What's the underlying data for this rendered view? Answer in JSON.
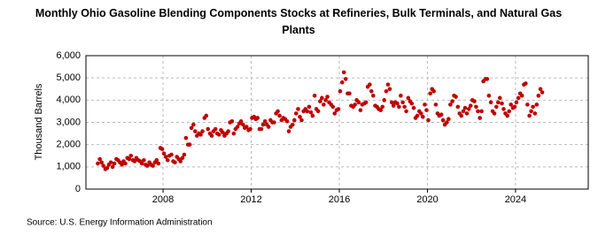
{
  "chart_data": {
    "type": "scatter",
    "title": "Monthly Ohio Gasoline Blending Components Stocks at Refineries, Bulk Terminals, and Natural Gas Plants",
    "y_label": "Thousand Barrels",
    "source": "Source: U.S. Energy Information Administration",
    "color": "#c00000",
    "grid": true,
    "xlim": [
      2004.5,
      2027.3
    ],
    "xticks": [
      2008,
      2012,
      2016,
      2020,
      2024
    ],
    "ylim": [
      0,
      6000
    ],
    "yticks": [
      0,
      {
        "value": 1000,
        "label": "1,000"
      },
      {
        "value": 2000,
        "label": "2,000"
      },
      {
        "value": 3000,
        "label": "3,000"
      },
      {
        "value": 4000,
        "label": "4,000"
      },
      {
        "value": 5000,
        "label": "5,000"
      },
      {
        "value": 6000,
        "label": "6,000"
      }
    ],
    "x": [
      2005.04,
      2005.13,
      2005.21,
      2005.29,
      2005.38,
      2005.46,
      2005.54,
      2005.63,
      2005.71,
      2005.79,
      2005.88,
      2005.96,
      2006.04,
      2006.13,
      2006.21,
      2006.29,
      2006.38,
      2006.46,
      2006.54,
      2006.63,
      2006.71,
      2006.79,
      2006.88,
      2006.96,
      2007.04,
      2007.13,
      2007.21,
      2007.29,
      2007.38,
      2007.46,
      2007.54,
      2007.63,
      2007.71,
      2007.79,
      2007.88,
      2007.96,
      2008.04,
      2008.13,
      2008.21,
      2008.29,
      2008.38,
      2008.46,
      2008.54,
      2008.63,
      2008.71,
      2008.79,
      2008.88,
      2008.96,
      2009.04,
      2009.13,
      2009.21,
      2009.29,
      2009.38,
      2009.46,
      2009.54,
      2009.63,
      2009.71,
      2009.79,
      2009.88,
      2009.96,
      2010.04,
      2010.13,
      2010.21,
      2010.29,
      2010.38,
      2010.46,
      2010.54,
      2010.63,
      2010.71,
      2010.79,
      2010.88,
      2010.96,
      2011.04,
      2011.13,
      2011.21,
      2011.29,
      2011.38,
      2011.46,
      2011.54,
      2011.63,
      2011.71,
      2011.79,
      2011.88,
      2011.96,
      2012.04,
      2012.13,
      2012.21,
      2012.29,
      2012.38,
      2012.46,
      2012.54,
      2012.63,
      2012.71,
      2012.79,
      2012.88,
      2012.96,
      2013.04,
      2013.13,
      2013.21,
      2013.29,
      2013.38,
      2013.46,
      2013.54,
      2013.63,
      2013.71,
      2013.79,
      2013.88,
      2013.96,
      2014.04,
      2014.13,
      2014.21,
      2014.29,
      2014.38,
      2014.46,
      2014.54,
      2014.63,
      2014.71,
      2014.79,
      2014.88,
      2014.96,
      2015.04,
      2015.13,
      2015.21,
      2015.29,
      2015.38,
      2015.46,
      2015.54,
      2015.63,
      2015.71,
      2015.79,
      2015.88,
      2015.96,
      2016.04,
      2016.13,
      2016.21,
      2016.29,
      2016.38,
      2016.46,
      2016.54,
      2016.63,
      2016.71,
      2016.79,
      2016.88,
      2016.96,
      2017.04,
      2017.13,
      2017.21,
      2017.29,
      2017.38,
      2017.46,
      2017.54,
      2017.63,
      2017.71,
      2017.79,
      2017.88,
      2017.96,
      2018.04,
      2018.13,
      2018.21,
      2018.29,
      2018.38,
      2018.46,
      2018.54,
      2018.63,
      2018.71,
      2018.79,
      2018.88,
      2018.96,
      2019.04,
      2019.13,
      2019.21,
      2019.29,
      2019.38,
      2019.46,
      2019.54,
      2019.63,
      2019.71,
      2019.79,
      2019.88,
      2019.96,
      2020.04,
      2020.13,
      2020.21,
      2020.29,
      2020.38,
      2020.46,
      2020.54,
      2020.63,
      2020.71,
      2020.79,
      2020.88,
      2020.96,
      2021.04,
      2021.13,
      2021.21,
      2021.29,
      2021.38,
      2021.46,
      2021.54,
      2021.63,
      2021.71,
      2021.79,
      2021.88,
      2021.96,
      2022.04,
      2022.13,
      2022.21,
      2022.29,
      2022.38,
      2022.46,
      2022.54,
      2022.63,
      2022.71,
      2022.79,
      2022.88,
      2022.96,
      2023.04,
      2023.13,
      2023.21,
      2023.29,
      2023.38,
      2023.46,
      2023.54,
      2023.63,
      2023.71,
      2023.79,
      2023.88,
      2023.96,
      2024.04,
      2024.13,
      2024.21,
      2024.29,
      2024.38,
      2024.46,
      2024.54,
      2024.63,
      2024.71,
      2024.79,
      2024.88,
      2024.96,
      2025.04,
      2025.13,
      2025.21
    ],
    "values": [
      1150,
      1350,
      1200,
      1050,
      900,
      950,
      1100,
      1200,
      1000,
      1150,
      1350,
      1300,
      1200,
      1100,
      1250,
      1150,
      1400,
      1350,
      1500,
      1300,
      1250,
      1400,
      1300,
      1250,
      1150,
      1300,
      1100,
      1050,
      1200,
      1100,
      1050,
      1200,
      1300,
      1150,
      1850,
      1800,
      1600,
      1450,
      1300,
      1500,
      1550,
      1250,
      1200,
      1450,
      1350,
      1250,
      1400,
      1550,
      2300,
      2000,
      2000,
      2750,
      2900,
      2600,
      2400,
      2500,
      2450,
      2600,
      3200,
      3300,
      2700,
      2500,
      2400,
      2600,
      2700,
      2500,
      2450,
      2650,
      2550,
      2400,
      2500,
      2600,
      3000,
      3050,
      2500,
      2700,
      2800,
      2950,
      3050,
      2900,
      2750,
      2800,
      2650,
      2700,
      3200,
      3250,
      3150,
      3200,
      2700,
      2700,
      2900,
      3050,
      2900,
      2800,
      3100,
      3000,
      3000,
      3400,
      3500,
      3300,
      3100,
      3200,
      3150,
      3050,
      2600,
      2800,
      2900,
      3100,
      3400,
      3600,
      3250,
      3100,
      3500,
      3600,
      3500,
      3700,
      3450,
      3300,
      4200,
      3600,
      3500,
      3950,
      4100,
      3800,
      4000,
      4150,
      3900,
      3800,
      3700,
      3400,
      3550,
      3600,
      4400,
      4800,
      5250,
      4950,
      4300,
      4300,
      3750,
      3700,
      3800,
      4000,
      3900,
      3550,
      3800,
      3850,
      3900,
      4600,
      4700,
      4400,
      4200,
      3750,
      3700,
      3600,
      3550,
      3700,
      4000,
      4400,
      4700,
      4500,
      3900,
      3750,
      3900,
      3850,
      3700,
      4200,
      3900,
      3700,
      3500,
      4100,
      3950,
      3850,
      3650,
      3200,
      3300,
      3500,
      3400,
      3250,
      3800,
      3550,
      3100,
      4300,
      4500,
      4400,
      3800,
      3400,
      3300,
      3350,
      3100,
      2900,
      3000,
      3150,
      3800,
      3950,
      4200,
      4150,
      3700,
      3400,
      3300,
      3500,
      3650,
      3400,
      3600,
      3750,
      4000,
      3950,
      3700,
      3500,
      3200,
      3500,
      4850,
      4950,
      4950,
      4200,
      3900,
      3500,
      3400,
      3700,
      3900,
      4100,
      3850,
      3600,
      3400,
      3300,
      3500,
      3800,
      3650,
      3700,
      3900,
      4100,
      4300,
      4200,
      4700,
      4750,
      3800,
      3300,
      3500,
      3700,
      3400,
      3800,
      4200,
      4500,
      4350
    ]
  }
}
